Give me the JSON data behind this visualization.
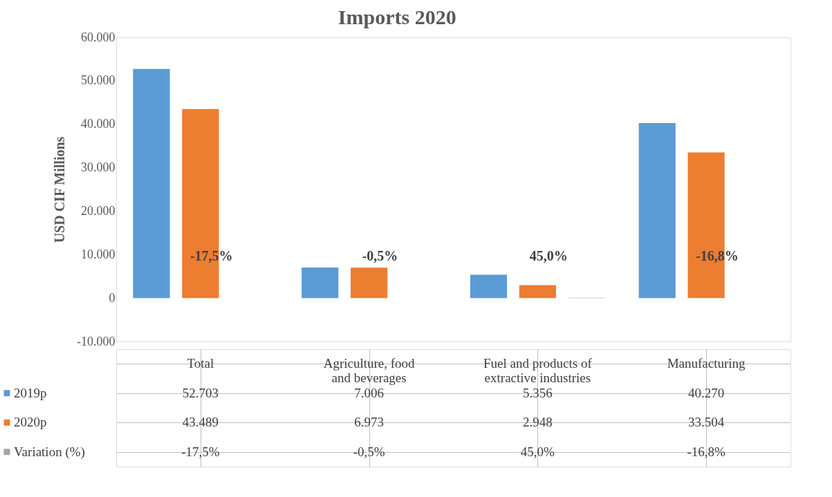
{
  "chart_data": {
    "type": "bar",
    "title": "Imports 2020",
    "ylabel": "USD CIF Millions",
    "categories": [
      "Total",
      "Agriculture, food and beverages",
      "Fuel and products of extractive industries",
      "Manufacturing"
    ],
    "series": [
      {
        "name": "2019p",
        "color": "#5b9bd5",
        "values": [
          52703,
          7006,
          5356,
          40270
        ],
        "value_labels": [
          "52.703",
          "7.006",
          "5.356",
          "40.270"
        ]
      },
      {
        "name": "2020p",
        "color": "#ed7d31",
        "values": [
          43489,
          6973,
          2948,
          33504
        ],
        "value_labels": [
          "43.489",
          "6.973",
          "2.948",
          "33.504"
        ]
      },
      {
        "name": "Variation (%)",
        "color": "#a5a5a5",
        "values": [
          -17.5,
          -0.5,
          45.0,
          -16.8
        ],
        "value_labels": [
          "-17,5%",
          "-0,5%",
          "45,0%",
          "-16,8%"
        ]
      }
    ],
    "ylim": [
      -10000,
      60000
    ],
    "yticks": [
      {
        "value": -10000,
        "label": "-10.000"
      },
      {
        "value": 0,
        "label": "0"
      },
      {
        "value": 10000,
        "label": "10.000"
      },
      {
        "value": 20000,
        "label": "20.000"
      },
      {
        "value": 30000,
        "label": "30.000"
      },
      {
        "value": 40000,
        "label": "40.000"
      },
      {
        "value": 50000,
        "label": "50.000"
      },
      {
        "value": 60000,
        "label": "60.000"
      }
    ],
    "grid": false,
    "legend": "bottom left"
  }
}
